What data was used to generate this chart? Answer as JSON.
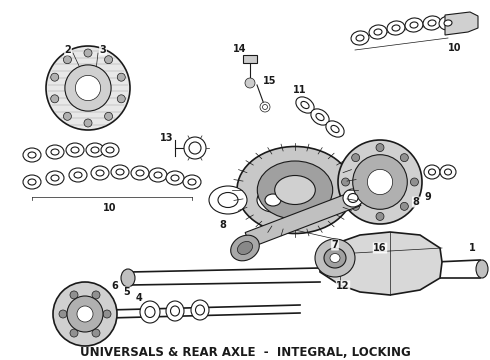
{
  "title": "UNIVERSALS & REAR AXLE  -  INTEGRAL, LOCKING",
  "title_fontsize": 8.5,
  "title_fontweight": "bold",
  "bg_color": "#ffffff",
  "line_color": "#1a1a1a",
  "fig_width": 4.9,
  "fig_height": 3.6,
  "dpi": 100,
  "image_data": ""
}
